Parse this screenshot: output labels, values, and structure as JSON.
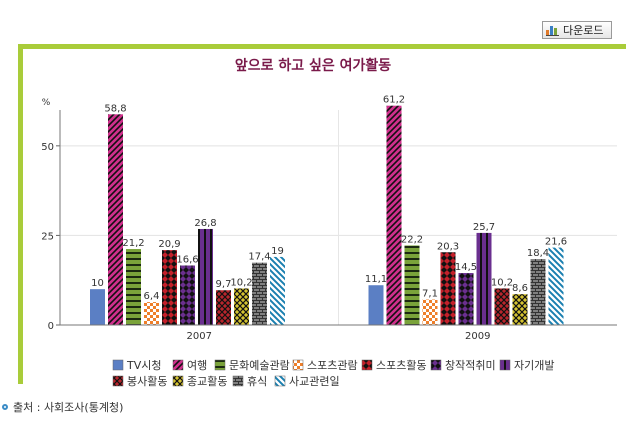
{
  "toolbar": {
    "download_label": "다운로드"
  },
  "source_text": "출처 : 사회조사(통계청)",
  "chart_data": {
    "type": "bar",
    "title": "앞으로 하고 싶은 여가활동",
    "ylabel": "%",
    "ylim": [
      0,
      60
    ],
    "yticks": [
      0,
      25,
      50
    ],
    "categories": [
      "2007",
      "2009"
    ],
    "legend_placement": "bottom",
    "series": [
      {
        "name": "TV시청",
        "values": [
          10,
          11.1
        ],
        "labels": [
          "10",
          "11,1"
        ],
        "color": "#5b7fc4",
        "pattern": "solid"
      },
      {
        "name": "여행",
        "values": [
          58.8,
          61.2
        ],
        "labels": [
          "58,8",
          "61,2"
        ],
        "color": "#d02f8c",
        "pattern": "diag"
      },
      {
        "name": "문화예술관람",
        "values": [
          21.2,
          22.2
        ],
        "labels": [
          "21,2",
          "22,2"
        ],
        "color": "#7aa33a",
        "pattern": "hstripe"
      },
      {
        "name": "스포츠관람",
        "values": [
          6.4,
          7.1
        ],
        "labels": [
          "6,4",
          "7,1"
        ],
        "color": "#ee7f2a",
        "pattern": "check"
      },
      {
        "name": "스포츠활동",
        "values": [
          20.9,
          20.3
        ],
        "labels": [
          "20,9",
          "20,3"
        ],
        "color": "#c4202a",
        "pattern": "diamond"
      },
      {
        "name": "창작적취미",
        "values": [
          16.6,
          14.5
        ],
        "labels": [
          "16,6",
          "14,5"
        ],
        "color": "#6a2f8f",
        "pattern": "diamond"
      },
      {
        "name": "자기개발",
        "values": [
          26.8,
          25.7
        ],
        "labels": [
          "26,8",
          "25,7"
        ],
        "color": "#6a2f8f",
        "pattern": "vstripe"
      },
      {
        "name": "봉사활동",
        "values": [
          9.7,
          10.2
        ],
        "labels": [
          "9,7",
          "10,2"
        ],
        "color": "#b9252c",
        "pattern": "xhatch"
      },
      {
        "name": "종교활동",
        "values": [
          10.2,
          8.6
        ],
        "labels": [
          "10,2",
          "8,6"
        ],
        "color": "#d6c431",
        "pattern": "xhatch"
      },
      {
        "name": "휴식",
        "values": [
          17.4,
          18.4
        ],
        "labels": [
          "17,4",
          "18,4"
        ],
        "color": "#808080",
        "pattern": "brick"
      },
      {
        "name": "사교관련일",
        "values": [
          19,
          21.6
        ],
        "labels": [
          "19",
          "21,6"
        ],
        "color": "#1a7fb0",
        "pattern": "adiag"
      }
    ]
  }
}
